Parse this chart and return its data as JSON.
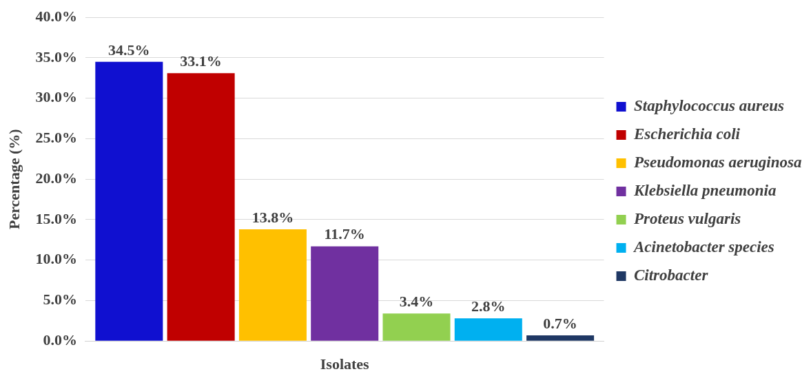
{
  "chart_data": {
    "type": "bar",
    "xlabel": "Isolates",
    "ylabel": "Percentage (%)",
    "categories": [
      null
    ],
    "series": [
      {
        "name": "Staphylococcus aureus",
        "color": "#1010d0",
        "values": [
          34.5
        ],
        "value_labels": [
          "34.5%"
        ]
      },
      {
        "name": "Escherichia coli",
        "color": "#c00000",
        "values": [
          33.1
        ],
        "value_labels": [
          "33.1%"
        ]
      },
      {
        "name": "Pseudomonas aeruginosa",
        "color": "#ffc000",
        "values": [
          13.8
        ],
        "value_labels": [
          "13.8%"
        ]
      },
      {
        "name": "Klebsiella pneumonia",
        "color": "#7030a0",
        "values": [
          11.7
        ],
        "value_labels": [
          "11.7%"
        ]
      },
      {
        "name": "Proteus vulgaris",
        "color": "#92d050",
        "values": [
          3.4
        ],
        "value_labels": [
          "3.4%"
        ]
      },
      {
        "name": "Acinetobacter species",
        "color": "#00b0f0",
        "values": [
          2.8
        ],
        "value_labels": [
          "2.8%"
        ]
      },
      {
        "name": "Citrobacter",
        "color": "#1f3864",
        "values": [
          0.7
        ],
        "value_labels": [
          "0.7%"
        ]
      }
    ],
    "ylim": [
      0,
      40
    ],
    "yticks": [
      {
        "value": 0,
        "label": "0.0%"
      },
      {
        "value": 5,
        "label": "5.0%"
      },
      {
        "value": 10,
        "label": "10.0%"
      },
      {
        "value": 15,
        "label": "15.0%"
      },
      {
        "value": 20,
        "label": "20.0%"
      },
      {
        "value": 25,
        "label": "25.0%"
      },
      {
        "value": 30,
        "label": "30.0%"
      },
      {
        "value": 35,
        "label": "35.0%"
      },
      {
        "value": 40,
        "label": "40.0%"
      }
    ],
    "grid": "y",
    "legend": "right"
  }
}
